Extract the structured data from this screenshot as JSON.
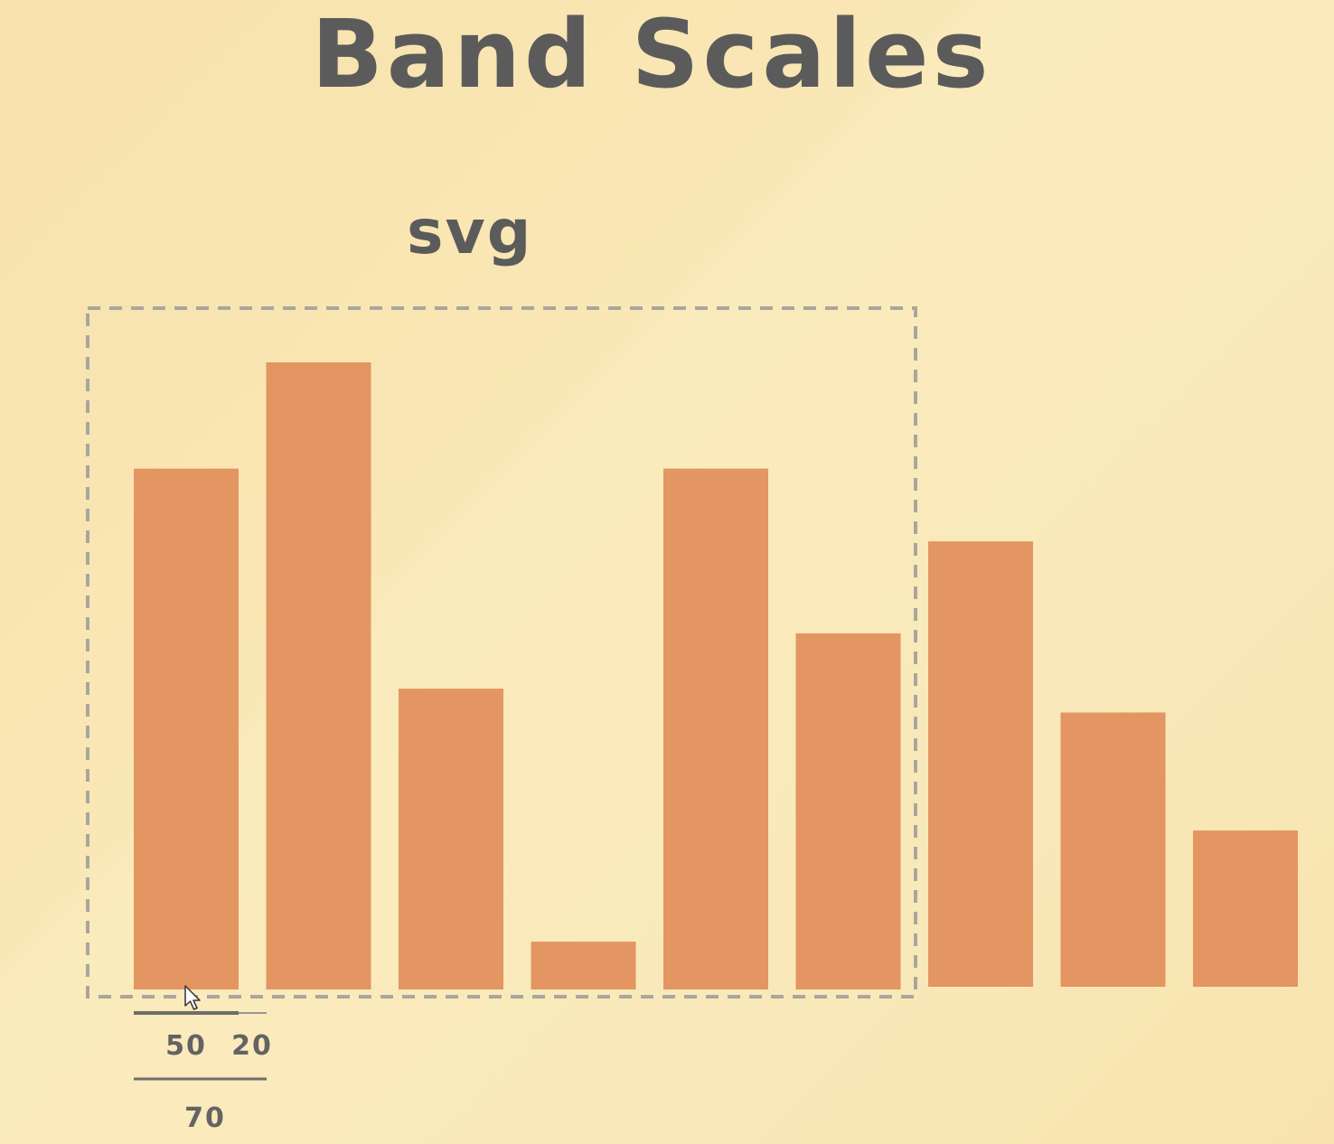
{
  "slide": {
    "title": "Band Scales",
    "svg_label": "svg"
  },
  "annotation": {
    "bar_width": "50",
    "padding": "20",
    "step": "70"
  },
  "colors": {
    "background": "#f9e7b5",
    "bar": "#e39562",
    "text": "#5c5b5b",
    "dashed_border": "#a9a69e",
    "rule": "#6e6d6b"
  },
  "chart_data": {
    "type": "bar",
    "values": [
      49,
      59,
      28.3,
      4.5,
      49,
      33.5,
      41.9,
      25.8,
      14.7
    ]
  }
}
